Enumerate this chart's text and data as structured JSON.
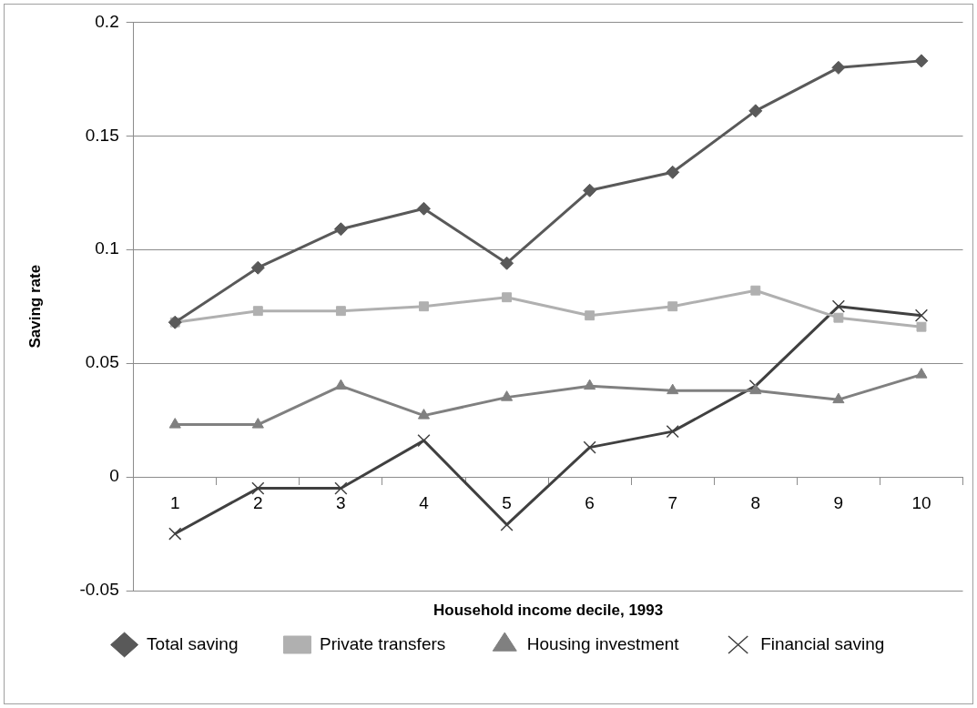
{
  "chart_data": {
    "type": "line",
    "xlabel": "Household income decile, 1993",
    "ylabel": "Saving rate",
    "categories": [
      "1",
      "2",
      "3",
      "4",
      "5",
      "6",
      "7",
      "8",
      "9",
      "10"
    ],
    "series": [
      {
        "name": "Total saving",
        "color": "#595959",
        "marker": "diamond",
        "values": [
          0.068,
          0.092,
          0.109,
          0.118,
          0.094,
          0.126,
          0.134,
          0.161,
          0.18,
          0.183
        ]
      },
      {
        "name": "Private transfers",
        "color": "#b0b0b0",
        "marker": "square",
        "values": [
          0.068,
          0.073,
          0.073,
          0.075,
          0.079,
          0.071,
          0.075,
          0.082,
          0.07,
          0.066
        ]
      },
      {
        "name": "Housing investment",
        "color": "#808080",
        "marker": "triangle",
        "values": [
          0.023,
          0.023,
          0.04,
          0.027,
          0.035,
          0.04,
          0.038,
          0.038,
          0.034,
          0.045
        ]
      },
      {
        "name": "Financial saving",
        "color": "#404040",
        "marker": "cross",
        "values": [
          -0.025,
          -0.005,
          -0.005,
          0.016,
          -0.021,
          0.013,
          0.02,
          0.04,
          0.075,
          0.071
        ]
      }
    ],
    "ylim": [
      -0.05,
      0.2
    ],
    "yticks": [
      -0.05,
      0,
      0.05,
      0.1,
      0.15,
      0.2
    ],
    "grid": "y",
    "legend": "bottom",
    "line_style": "solid"
  }
}
